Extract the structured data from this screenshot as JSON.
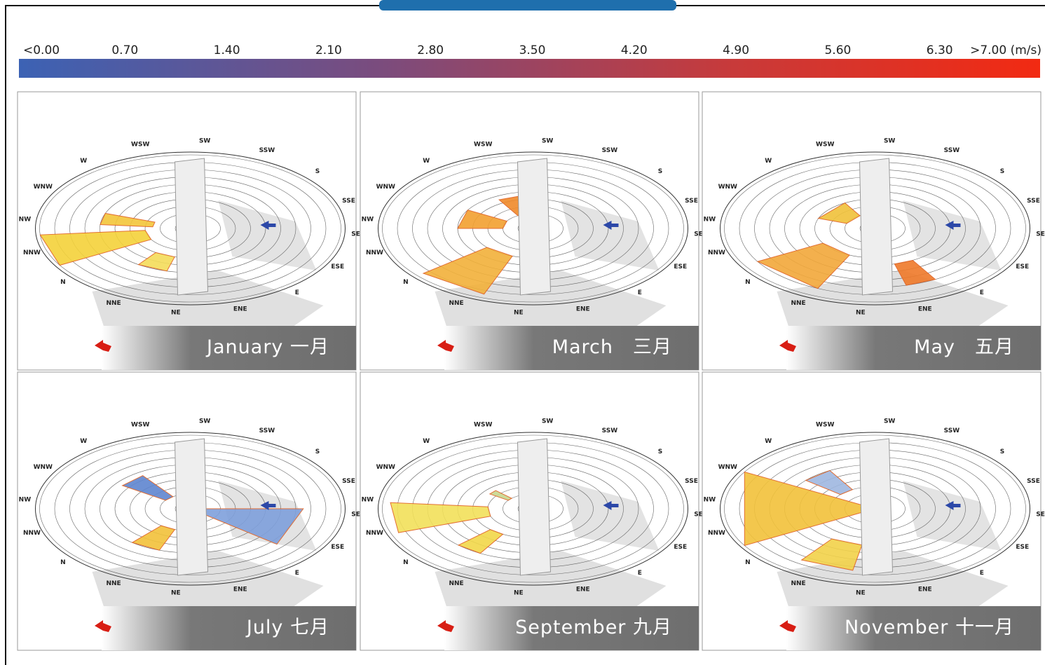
{
  "colorbar": {
    "labels": [
      "<0.00",
      "0.70",
      "1.40",
      "2.10",
      "2.80",
      "3.50",
      "4.20",
      "4.90",
      "5.60",
      "6.30",
      ">7.00 (m/s)"
    ]
  },
  "directions": [
    "N",
    "NNE",
    "NE",
    "ENE",
    "E",
    "ESE",
    "SE",
    "SSE",
    "S",
    "SSW",
    "SW",
    "WSW",
    "W",
    "WNW",
    "NW",
    "NNW"
  ],
  "panels": [
    {
      "title": "January 一月"
    },
    {
      "title": "March　三月"
    },
    {
      "title": "May　五月"
    },
    {
      "title": "July 七月"
    },
    {
      "title": "September 九月"
    },
    {
      "title": "November 十一月"
    }
  ]
}
